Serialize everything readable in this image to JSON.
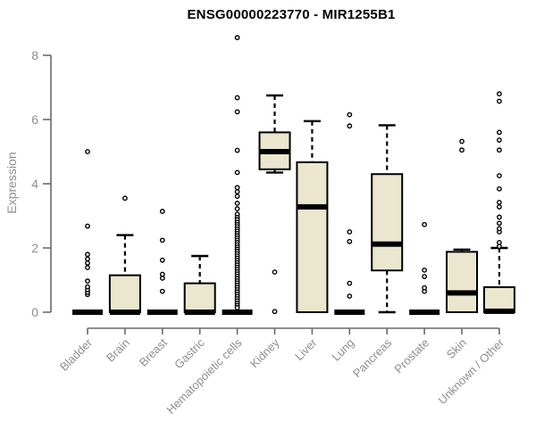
{
  "chart_data": {
    "type": "boxplot",
    "title": "ENSG00000223770 - MIR1255B1",
    "ylabel": "Expression",
    "xlabel": "",
    "ylim": [
      0,
      8
    ],
    "yticks": [
      0,
      2,
      4,
      6,
      8
    ],
    "grid": false,
    "legend": "none",
    "categories": [
      "Bladder",
      "Brain",
      "Breast",
      "Gastric",
      "Hematopoietic cells",
      "Kidney",
      "Liver",
      "Lung",
      "Pancreas",
      "Prostate",
      "Skin",
      "Unknown / Other"
    ],
    "series": [
      {
        "name": "Bladder",
        "whisker_low": 0,
        "q1": 0,
        "median": 0,
        "q3": 0,
        "whisker_high": 0,
        "outliers": [
          0.55,
          0.62,
          0.7,
          0.79,
          0.97,
          1.39,
          1.53,
          1.66,
          1.8,
          2.68,
          5.0
        ]
      },
      {
        "name": "Brain",
        "whisker_low": 0,
        "q1": 0,
        "median": 0,
        "q3": 1.15,
        "whisker_high": 2.4,
        "outliers": [
          3.55
        ]
      },
      {
        "name": "Breast",
        "whisker_low": 0,
        "q1": 0,
        "median": 0,
        "q3": 0,
        "whisker_high": 0,
        "outliers": [
          0.65,
          1.06,
          1.18,
          1.62,
          2.24,
          3.14
        ]
      },
      {
        "name": "Gastric",
        "whisker_low": 0,
        "q1": 0,
        "median": 0,
        "q3": 0.9,
        "whisker_high": 1.75,
        "outliers": []
      },
      {
        "name": "Hematopoietic cells",
        "whisker_low": 0,
        "q1": 0,
        "median": 0,
        "q3": 0,
        "whisker_high": 0,
        "outliers": [
          8.55,
          6.68,
          6.24,
          5.04,
          4.35,
          3.88,
          3.75,
          3.61,
          3.39,
          3.22,
          3.05,
          2.95,
          2.88,
          2.8,
          2.73,
          2.66,
          2.59,
          2.52,
          2.45,
          2.38,
          2.31,
          2.24,
          2.17,
          2.1,
          2.03,
          1.96,
          1.89,
          1.82,
          1.75,
          1.68,
          1.61,
          1.54,
          1.47,
          1.4,
          1.33,
          1.26,
          1.19,
          1.12,
          1.05,
          0.98,
          0.91,
          0.84,
          0.77,
          0.7,
          0.63,
          0.56,
          0.49,
          0.42,
          0.35,
          0.28,
          0.21,
          0.14
        ]
      },
      {
        "name": "Kidney",
        "whisker_low": 4.35,
        "q1": 4.45,
        "median": 5.0,
        "q3": 5.6,
        "whisker_high": 6.75,
        "outliers": [
          1.25,
          0.02
        ]
      },
      {
        "name": "Liver",
        "whisker_low": 0,
        "q1": 0,
        "median": 3.28,
        "q3": 4.67,
        "whisker_high": 5.95,
        "outliers": []
      },
      {
        "name": "Lung",
        "whisker_low": 0,
        "q1": 0,
        "median": 0,
        "q3": 0,
        "whisker_high": 0,
        "outliers": [
          0.5,
          0.9,
          2.2,
          2.5,
          5.8,
          6.15
        ]
      },
      {
        "name": "Pancreas",
        "whisker_low": 0,
        "q1": 1.3,
        "median": 2.12,
        "q3": 4.3,
        "whisker_high": 5.82,
        "outliers": []
      },
      {
        "name": "Prostate",
        "whisker_low": 0,
        "q1": 0,
        "median": 0,
        "q3": 0,
        "whisker_high": 0,
        "outliers": [
          0.65,
          0.76,
          1.11,
          1.31,
          2.73
        ]
      },
      {
        "name": "Skin",
        "whisker_low": 0,
        "q1": 0,
        "median": 0.6,
        "q3": 1.88,
        "whisker_high": 1.95,
        "outliers": [
          5.05,
          5.32
        ]
      },
      {
        "name": "Unknown / Other",
        "whisker_low": 0,
        "q1": 0,
        "median": 0.03,
        "q3": 0.78,
        "whisker_high": 2.0,
        "outliers": [
          2.05,
          2.17,
          2.5,
          2.6,
          2.77,
          2.96,
          3.28,
          3.42,
          3.84,
          4.25,
          5.05,
          5.36,
          5.6,
          6.57,
          6.8
        ]
      }
    ],
    "colors": {
      "background": "#ffffff",
      "box_fill": "#EBE6CE",
      "box_border": "#000000",
      "median": "#000000",
      "whisker": "#000000",
      "outlier_stroke": "#000000",
      "outlier_fill": "#ffffff",
      "axis": "#6b6b6b",
      "tick_text": "#8f8f8f",
      "title": "#000000"
    }
  }
}
